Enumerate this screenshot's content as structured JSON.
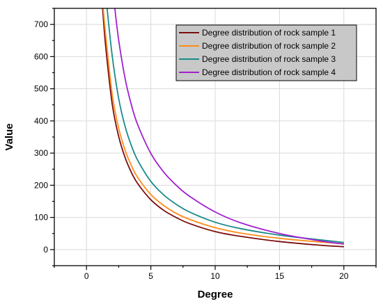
{
  "chart_data": {
    "type": "line",
    "title": "",
    "xlabel": "Degree",
    "ylabel": "Value",
    "xlim": [
      -2.5,
      22.5
    ],
    "ylim": [
      -50,
      750
    ],
    "x_ticks": [
      0,
      5,
      10,
      15,
      20
    ],
    "y_ticks": [
      0,
      100,
      200,
      300,
      400,
      500,
      600,
      700
    ],
    "grid": true,
    "legend_position": "top-right",
    "series": [
      {
        "name": "Degree distribution of rock sample 1",
        "color": "#7a0d0d",
        "x": [
          1.25,
          1.5,
          2,
          2.5,
          3,
          3.5,
          4,
          5,
          6,
          7,
          8,
          10,
          12,
          15,
          18,
          20
        ],
        "y": [
          750,
          628,
          452,
          352,
          286,
          239,
          204,
          155,
          122,
          99,
          81,
          56,
          41,
          25,
          14,
          9
        ]
      },
      {
        "name": "Degree distribution of rock sample 2",
        "color": "#ff8c1a",
        "x": [
          1.3,
          1.5,
          2,
          2.5,
          3,
          3.5,
          4,
          5,
          6,
          7,
          8,
          10,
          12,
          15,
          18,
          20
        ],
        "y": [
          750,
          664,
          482,
          378,
          309,
          260,
          223,
          171,
          137,
          112,
          94,
          68,
          51,
          35,
          24,
          18
        ]
      },
      {
        "name": "Degree distribution of rock sample 3",
        "color": "#1a8a8a",
        "x": [
          1.6,
          2,
          2.5,
          3,
          3.5,
          4,
          5,
          6,
          7,
          8,
          10,
          12,
          15,
          18,
          20
        ],
        "y": [
          750,
          602,
          470,
          383,
          322,
          276,
          212,
          170,
          140,
          117,
          85,
          65,
          45,
          31,
          22
        ]
      },
      {
        "name": "Degree distribution of rock sample 4",
        "color": "#a020d0",
        "x": [
          2.2,
          2.5,
          3,
          3.5,
          4,
          5,
          6,
          7,
          8,
          10,
          12,
          15,
          18,
          20
        ],
        "y": [
          750,
          652,
          532,
          448,
          386,
          299,
          241,
          199,
          166,
          117,
          83,
          50,
          28,
          17
        ]
      }
    ]
  }
}
